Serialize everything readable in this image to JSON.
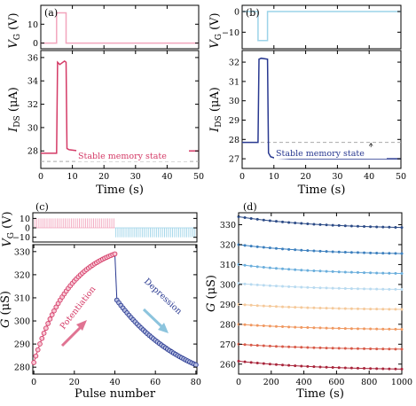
{
  "colors": {
    "red": "#d43a66",
    "pink_pulse": "#f2a5bd",
    "blue": "#283890",
    "light_blue_pulse": "#9cd3e8",
    "grey_dash": "#aaaaaa",
    "arrow_red": "#e07392",
    "arrow_blue": "#8cc4dd"
  },
  "chart_data": [
    {
      "panel": "(a)",
      "type": "line",
      "top": {
        "ylabel_main": "V",
        "ylabel_sub": "G",
        "ylabel_unit": "(V)",
        "yticks": [
          "10",
          "0"
        ],
        "ylim": [
          -3,
          20
        ],
        "x": [
          0,
          5,
          5,
          8,
          8,
          50
        ],
        "y": [
          0,
          0,
          16,
          16,
          0,
          0
        ]
      },
      "bottom": {
        "ylabel_main": "I",
        "ylabel_sub": "DS",
        "ylabel_unit": "(μA)",
        "yticks": [
          "28",
          "30",
          "32",
          "34",
          "36"
        ],
        "ylim": [
          26.5,
          36.6
        ],
        "xticks": [
          "0",
          "10",
          "20",
          "30",
          "40",
          "50"
        ],
        "xlim": [
          0,
          50
        ],
        "xlabel": "Time (s)",
        "x": [
          0,
          5,
          5.3,
          6,
          7.5,
          8,
          8.3,
          9,
          12,
          20,
          30,
          40,
          50
        ],
        "y": [
          27.8,
          27.8,
          35.6,
          35.4,
          35.7,
          35.6,
          28.2,
          28.1,
          28.0,
          28.0,
          28.0,
          28.0,
          28.0
        ],
        "reference_line": 27.1,
        "annotation": "Stable memory state"
      }
    },
    {
      "panel": "(b)",
      "type": "line",
      "top": {
        "ylabel_main": "V",
        "ylabel_sub": "G",
        "ylabel_unit": "(V)",
        "yticks": [
          "0",
          "−10"
        ],
        "ylim": [
          -18,
          3
        ],
        "x": [
          0,
          5,
          5,
          8,
          8,
          50
        ],
        "y": [
          0,
          0,
          -14,
          -14,
          0,
          0
        ]
      },
      "bottom": {
        "ylabel_main": "I",
        "ylabel_sub": "DS",
        "ylabel_unit": "(μA)",
        "yticks": [
          "27",
          "28",
          "29",
          "30",
          "31",
          "32"
        ],
        "ylim": [
          26.5,
          32.6
        ],
        "xticks": [
          "0",
          "10",
          "20",
          "30",
          "40",
          "50"
        ],
        "xlim": [
          0,
          50
        ],
        "xlabel": "Time (s)",
        "x": [
          0,
          5,
          5.3,
          6,
          8,
          8.3,
          9,
          10,
          15,
          20,
          30,
          40,
          50
        ],
        "y": [
          27.85,
          27.85,
          32.15,
          32.2,
          32.15,
          27.3,
          27.1,
          27.05,
          27.0,
          27.0,
          27.0,
          27.0,
          27.0
        ],
        "reference_line": 27.85,
        "annotation": "Stable memory state"
      }
    },
    {
      "panel": "(c)",
      "type": "scatter",
      "top": {
        "ylabel_main": "V",
        "ylabel_sub": "G",
        "ylabel_unit": "(V)",
        "yticks": [
          "10",
          "0",
          "−10"
        ],
        "ylim": [
          -15,
          16
        ],
        "pulses": 80,
        "pos_amplitude": 10,
        "neg_amplitude": -10
      },
      "bottom": {
        "ylabel_main": "G",
        "ylabel_unit": "(μS)",
        "yticks": [
          "280",
          "290",
          "300",
          "310",
          "320",
          "330"
        ],
        "ylim": [
          277,
          333
        ],
        "xticks": [
          "0",
          "20",
          "40",
          "60",
          "80"
        ],
        "xlim": [
          -0.5,
          80.5
        ],
        "xlabel": "Pulse number",
        "potentiation": {
          "label": "Potentiation",
          "start": 282,
          "end": 329,
          "count": 41
        },
        "depression": {
          "label": "Depression",
          "start": 309,
          "end": 281,
          "count": 40
        }
      }
    },
    {
      "panel": "(d)",
      "type": "line",
      "ylabel_main": "G",
      "ylabel_unit": "(μS)",
      "yticks": [
        "260",
        "270",
        "280",
        "290",
        "300",
        "310",
        "320",
        "330"
      ],
      "ylim": [
        255,
        336
      ],
      "xticks": [
        "0",
        "200",
        "400",
        "600",
        "800",
        "1000"
      ],
      "xlim": [
        0,
        1000
      ],
      "xlabel": "Time (s)",
      "series": [
        {
          "start": 334.0,
          "end": 328.6,
          "color": "#2b4a86"
        },
        {
          "start": 320.0,
          "end": 315.5,
          "color": "#3b7fbe"
        },
        {
          "start": 310.0,
          "end": 305.5,
          "color": "#6aaedc"
        },
        {
          "start": 300.5,
          "end": 297.5,
          "color": "#b8daf0"
        },
        {
          "start": 290.0,
          "end": 287.5,
          "color": "#f5c99a"
        },
        {
          "start": 280.0,
          "end": 277.5,
          "color": "#f09860"
        },
        {
          "start": 270.0,
          "end": 267.5,
          "color": "#d85a48"
        },
        {
          "start": 261.5,
          "end": 257.5,
          "color": "#a8243a"
        }
      ]
    }
  ]
}
